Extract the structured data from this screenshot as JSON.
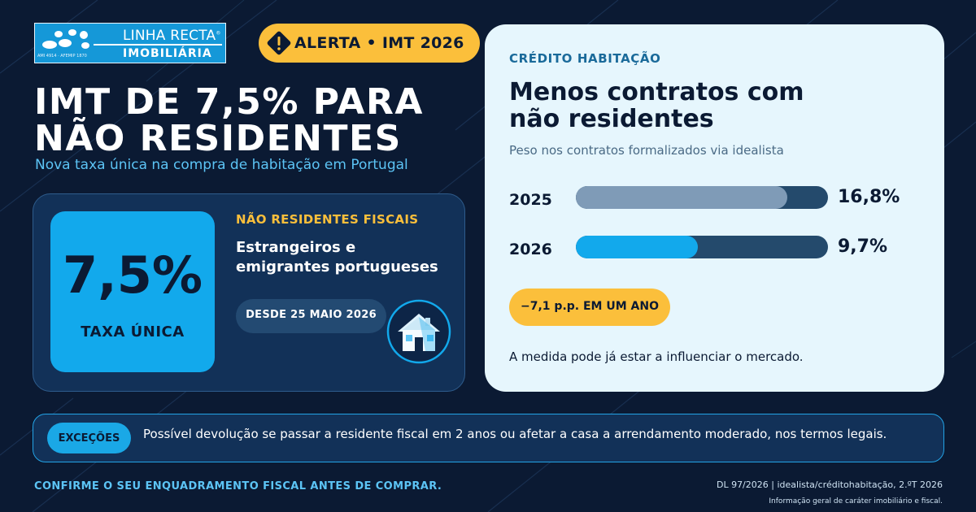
{
  "brand": {
    "name": "LINHA RECTA",
    "registered_mark": "®",
    "division": "IMOBILIÁRIA",
    "license": "AMI 4914 · AFEMIP 1870"
  },
  "alert": {
    "icon": "warning-icon",
    "label": "ALERTA • IMT 2026"
  },
  "headline": {
    "line1": "IMT DE 7,5% PARA",
    "line2": "NÃO RESIDENTES"
  },
  "subtitle": "Nova taxa única na compra de habitação em Portugal",
  "rate_card": {
    "rate": "7,5%",
    "rate_label": "TAXA ÚNICA",
    "audience_title": "NÃO RESIDENTES FISCAIS",
    "audience_line1": "Estrangeiros e",
    "audience_line2": "emigrantes portugueses",
    "since": "DESDE 25 MAIO 2026",
    "icon": "house-icon"
  },
  "panel": {
    "kicker": "CRÉDITO HABITAÇÃO",
    "title_line1": "Menos contratos com",
    "title_line2": "não residentes",
    "subtitle": "Peso nos contratos formalizados via idealista",
    "change": "−7,1 p.p. EM UM ANO",
    "note": "A medida pode já estar a influenciar o mercado."
  },
  "chart_data": {
    "type": "bar",
    "orientation": "horizontal",
    "categories": [
      "2025",
      "2026"
    ],
    "values": [
      16.8,
      9.7
    ],
    "value_labels": [
      "16,8%",
      "9,7%"
    ],
    "xlim": [
      0,
      20
    ],
    "colors": [
      "#7f9bb7",
      "#12a9ec"
    ],
    "track_color": "#244a6c"
  },
  "exceptions": {
    "tag": "EXCEÇÕES",
    "text": "Possível devolução se passar a residente fiscal em 2 anos ou afetar a casa a arrendamento moderado, nos termos legais."
  },
  "footer": {
    "cta": "CONFIRME O SEU ENQUADRAMENTO FISCAL ANTES DE COMPRAR.",
    "source": "DL 97/2026  |  idealista/créditohabitação, 2.ºT 2026",
    "disclaimer": "Informação geral de caráter imobiliário e fiscal."
  },
  "colors": {
    "background": "#0b1a33",
    "accent_blue": "#12a9ec",
    "accent_yellow": "#fbbf3b",
    "panel": "#e6f6fd"
  }
}
